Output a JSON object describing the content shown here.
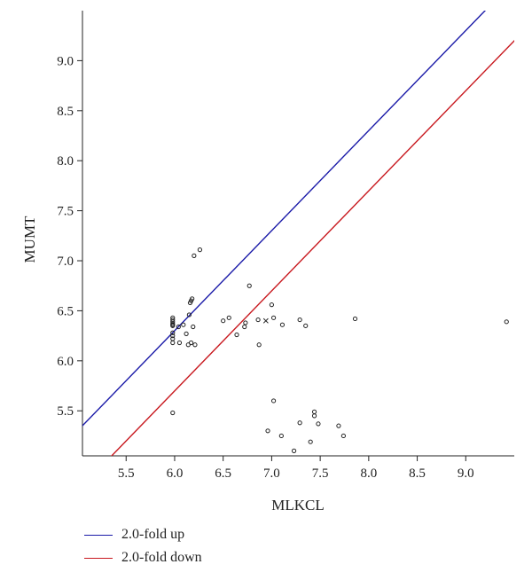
{
  "chart_data": {
    "type": "scatter",
    "title": "",
    "xlabel": "MLKCL",
    "ylabel": "MUMT",
    "xlim": [
      5.05,
      9.5
    ],
    "ylim": [
      5.05,
      9.5
    ],
    "xticks": [
      "5.5",
      "6.0",
      "6.5",
      "7.0",
      "7.5",
      "8.0",
      "8.5",
      "9.0"
    ],
    "yticks": [
      "5.5",
      "6.0",
      "6.5",
      "7.0",
      "7.5",
      "8.0",
      "8.5",
      "9.0"
    ],
    "grid": false,
    "legend_position": "bottom-left",
    "reference_lines": [
      {
        "name": "2.0-fold up",
        "color": "#1a1aa8",
        "offset": 0.301
      },
      {
        "name": "2.0-fold down",
        "color": "#c8181e",
        "offset": -0.301
      }
    ],
    "points": [
      {
        "x": 5.98,
        "y": 6.43
      },
      {
        "x": 5.98,
        "y": 6.41
      },
      {
        "x": 5.98,
        "y": 6.39
      },
      {
        "x": 5.98,
        "y": 6.37
      },
      {
        "x": 5.98,
        "y": 6.36
      },
      {
        "x": 5.98,
        "y": 6.35
      },
      {
        "x": 5.98,
        "y": 6.28
      },
      {
        "x": 5.98,
        "y": 6.25
      },
      {
        "x": 5.98,
        "y": 6.22
      },
      {
        "x": 5.98,
        "y": 6.18
      },
      {
        "x": 5.98,
        "y": 5.48
      },
      {
        "x": 6.04,
        "y": 6.34
      },
      {
        "x": 6.05,
        "y": 6.18
      },
      {
        "x": 6.09,
        "y": 6.36
      },
      {
        "x": 6.12,
        "y": 6.27
      },
      {
        "x": 6.14,
        "y": 6.16
      },
      {
        "x": 6.15,
        "y": 6.46
      },
      {
        "x": 6.16,
        "y": 6.58
      },
      {
        "x": 6.17,
        "y": 6.6
      },
      {
        "x": 6.18,
        "y": 6.62
      },
      {
        "x": 6.17,
        "y": 6.18
      },
      {
        "x": 6.19,
        "y": 6.34
      },
      {
        "x": 6.21,
        "y": 6.16
      },
      {
        "x": 6.2,
        "y": 7.05
      },
      {
        "x": 6.26,
        "y": 7.11
      },
      {
        "x": 6.5,
        "y": 6.4
      },
      {
        "x": 6.56,
        "y": 6.43
      },
      {
        "x": 6.64,
        "y": 6.26
      },
      {
        "x": 6.72,
        "y": 6.34
      },
      {
        "x": 6.73,
        "y": 6.38
      },
      {
        "x": 6.77,
        "y": 6.75
      },
      {
        "x": 6.86,
        "y": 6.41
      },
      {
        "x": 6.87,
        "y": 6.16
      },
      {
        "x": 7.0,
        "y": 6.56
      },
      {
        "x": 7.02,
        "y": 6.43
      },
      {
        "x": 7.11,
        "y": 6.36
      },
      {
        "x": 7.29,
        "y": 6.41
      },
      {
        "x": 7.35,
        "y": 6.35
      },
      {
        "x": 7.86,
        "y": 6.42
      },
      {
        "x": 9.42,
        "y": 6.39
      },
      {
        "x": 7.02,
        "y": 5.6
      },
      {
        "x": 6.96,
        "y": 5.3
      },
      {
        "x": 7.1,
        "y": 5.25
      },
      {
        "x": 7.23,
        "y": 5.1
      },
      {
        "x": 7.29,
        "y": 5.38
      },
      {
        "x": 7.4,
        "y": 5.19
      },
      {
        "x": 7.44,
        "y": 5.49
      },
      {
        "x": 7.44,
        "y": 5.45
      },
      {
        "x": 7.48,
        "y": 5.37
      },
      {
        "x": 7.69,
        "y": 5.35
      },
      {
        "x": 7.74,
        "y": 5.25
      }
    ],
    "cross_marker": {
      "x": 6.94,
      "y": 6.4
    }
  },
  "legend": {
    "items": [
      {
        "label": "2.0-fold up",
        "color": "#1a1aa8"
      },
      {
        "label": "2.0-fold down",
        "color": "#c8181e"
      }
    ]
  }
}
